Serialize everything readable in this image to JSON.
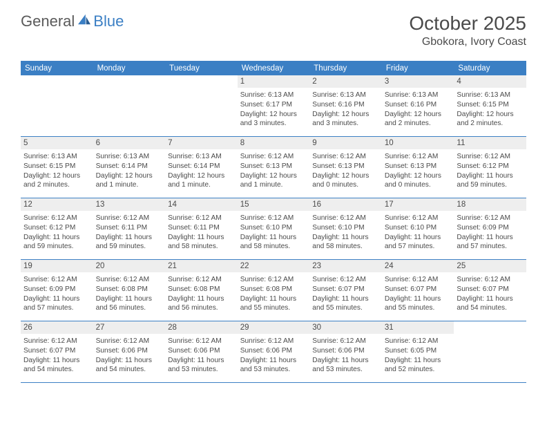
{
  "brand": {
    "part1": "General",
    "part2": "Blue"
  },
  "title": "October 2025",
  "location": "Gbokora, Ivory Coast",
  "colors": {
    "accent": "#3b7fc4",
    "headerText": "#ffffff",
    "dayNumBg": "#eeeeee",
    "textColor": "#4a4a4a",
    "pageBg": "#ffffff"
  },
  "daysOfWeek": [
    "Sunday",
    "Monday",
    "Tuesday",
    "Wednesday",
    "Thursday",
    "Friday",
    "Saturday"
  ],
  "weeks": [
    [
      null,
      null,
      null,
      {
        "n": "1",
        "sr": "6:13 AM",
        "ss": "6:17 PM",
        "dl": "12 hours and 3 minutes."
      },
      {
        "n": "2",
        "sr": "6:13 AM",
        "ss": "6:16 PM",
        "dl": "12 hours and 3 minutes."
      },
      {
        "n": "3",
        "sr": "6:13 AM",
        "ss": "6:16 PM",
        "dl": "12 hours and 2 minutes."
      },
      {
        "n": "4",
        "sr": "6:13 AM",
        "ss": "6:15 PM",
        "dl": "12 hours and 2 minutes."
      }
    ],
    [
      {
        "n": "5",
        "sr": "6:13 AM",
        "ss": "6:15 PM",
        "dl": "12 hours and 2 minutes."
      },
      {
        "n": "6",
        "sr": "6:13 AM",
        "ss": "6:14 PM",
        "dl": "12 hours and 1 minute."
      },
      {
        "n": "7",
        "sr": "6:13 AM",
        "ss": "6:14 PM",
        "dl": "12 hours and 1 minute."
      },
      {
        "n": "8",
        "sr": "6:12 AM",
        "ss": "6:13 PM",
        "dl": "12 hours and 1 minute."
      },
      {
        "n": "9",
        "sr": "6:12 AM",
        "ss": "6:13 PM",
        "dl": "12 hours and 0 minutes."
      },
      {
        "n": "10",
        "sr": "6:12 AM",
        "ss": "6:13 PM",
        "dl": "12 hours and 0 minutes."
      },
      {
        "n": "11",
        "sr": "6:12 AM",
        "ss": "6:12 PM",
        "dl": "11 hours and 59 minutes."
      }
    ],
    [
      {
        "n": "12",
        "sr": "6:12 AM",
        "ss": "6:12 PM",
        "dl": "11 hours and 59 minutes."
      },
      {
        "n": "13",
        "sr": "6:12 AM",
        "ss": "6:11 PM",
        "dl": "11 hours and 59 minutes."
      },
      {
        "n": "14",
        "sr": "6:12 AM",
        "ss": "6:11 PM",
        "dl": "11 hours and 58 minutes."
      },
      {
        "n": "15",
        "sr": "6:12 AM",
        "ss": "6:10 PM",
        "dl": "11 hours and 58 minutes."
      },
      {
        "n": "16",
        "sr": "6:12 AM",
        "ss": "6:10 PM",
        "dl": "11 hours and 58 minutes."
      },
      {
        "n": "17",
        "sr": "6:12 AM",
        "ss": "6:10 PM",
        "dl": "11 hours and 57 minutes."
      },
      {
        "n": "18",
        "sr": "6:12 AM",
        "ss": "6:09 PM",
        "dl": "11 hours and 57 minutes."
      }
    ],
    [
      {
        "n": "19",
        "sr": "6:12 AM",
        "ss": "6:09 PM",
        "dl": "11 hours and 57 minutes."
      },
      {
        "n": "20",
        "sr": "6:12 AM",
        "ss": "6:08 PM",
        "dl": "11 hours and 56 minutes."
      },
      {
        "n": "21",
        "sr": "6:12 AM",
        "ss": "6:08 PM",
        "dl": "11 hours and 56 minutes."
      },
      {
        "n": "22",
        "sr": "6:12 AM",
        "ss": "6:08 PM",
        "dl": "11 hours and 55 minutes."
      },
      {
        "n": "23",
        "sr": "6:12 AM",
        "ss": "6:07 PM",
        "dl": "11 hours and 55 minutes."
      },
      {
        "n": "24",
        "sr": "6:12 AM",
        "ss": "6:07 PM",
        "dl": "11 hours and 55 minutes."
      },
      {
        "n": "25",
        "sr": "6:12 AM",
        "ss": "6:07 PM",
        "dl": "11 hours and 54 minutes."
      }
    ],
    [
      {
        "n": "26",
        "sr": "6:12 AM",
        "ss": "6:07 PM",
        "dl": "11 hours and 54 minutes."
      },
      {
        "n": "27",
        "sr": "6:12 AM",
        "ss": "6:06 PM",
        "dl": "11 hours and 54 minutes."
      },
      {
        "n": "28",
        "sr": "6:12 AM",
        "ss": "6:06 PM",
        "dl": "11 hours and 53 minutes."
      },
      {
        "n": "29",
        "sr": "6:12 AM",
        "ss": "6:06 PM",
        "dl": "11 hours and 53 minutes."
      },
      {
        "n": "30",
        "sr": "6:12 AM",
        "ss": "6:06 PM",
        "dl": "11 hours and 53 minutes."
      },
      {
        "n": "31",
        "sr": "6:12 AM",
        "ss": "6:05 PM",
        "dl": "11 hours and 52 minutes."
      },
      null
    ]
  ],
  "labels": {
    "sunrise": "Sunrise:",
    "sunset": "Sunset:",
    "daylight": "Daylight:"
  }
}
